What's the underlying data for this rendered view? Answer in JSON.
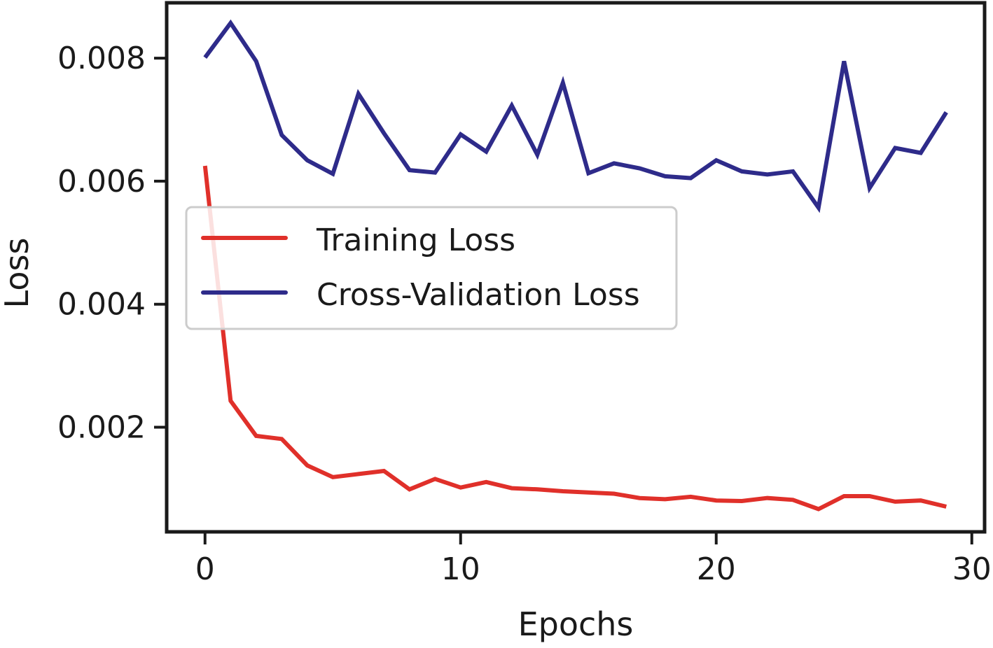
{
  "chart_data": {
    "type": "line",
    "xlabel": "Epochs",
    "ylabel": "Loss",
    "xlim": [
      -1.5,
      30.5
    ],
    "ylim": [
      0.0003,
      0.0089
    ],
    "xticks": [
      0,
      10,
      20,
      30
    ],
    "xtick_labels": [
      "0",
      "10",
      "20",
      "30"
    ],
    "yticks": [
      0.002,
      0.004,
      0.006,
      0.008
    ],
    "ytick_labels": [
      "0.002",
      "0.004",
      "0.006",
      "0.008"
    ],
    "grid": false,
    "legend": "center-left",
    "x": [
      0,
      1,
      2,
      3,
      4,
      5,
      6,
      7,
      8,
      9,
      10,
      11,
      12,
      13,
      14,
      15,
      16,
      17,
      18,
      19,
      20,
      21,
      22,
      23,
      24,
      25,
      26,
      27,
      28,
      29
    ],
    "series": [
      {
        "name": "Training Loss",
        "color": "#e0302a",
        "values": [
          0.00625,
          0.00243,
          0.00186,
          0.00181,
          0.00138,
          0.00119,
          0.00124,
          0.00129,
          0.00099,
          0.00116,
          0.00102,
          0.00111,
          0.00101,
          0.00099,
          0.00096,
          0.00094,
          0.00092,
          0.00085,
          0.00083,
          0.00087,
          0.00081,
          0.0008,
          0.00085,
          0.00082,
          0.00067,
          0.00088,
          0.00088,
          0.00079,
          0.00081,
          0.00071
        ]
      },
      {
        "name": "Cross-Validation Loss",
        "color": "#2e2b8a",
        "values": [
          0.00801,
          0.00857,
          0.00795,
          0.00675,
          0.00634,
          0.00612,
          0.00742,
          0.00678,
          0.00618,
          0.00614,
          0.00676,
          0.00648,
          0.00723,
          0.00643,
          0.0076,
          0.00613,
          0.00629,
          0.00621,
          0.00608,
          0.00605,
          0.00634,
          0.00616,
          0.00611,
          0.00616,
          0.00557,
          0.00795,
          0.00589,
          0.00654,
          0.00646,
          0.00712
        ]
      }
    ]
  }
}
